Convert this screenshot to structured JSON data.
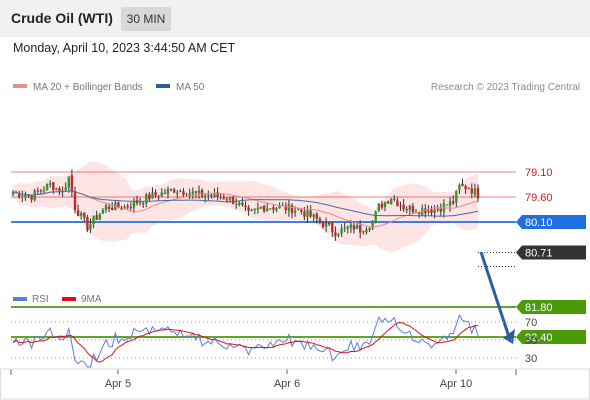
{
  "header": {
    "title": "Crude Oil (WTI)",
    "timeframe": "30 MIN",
    "datetime": "Monday, April 10, 2023 3:44:50 AM CET"
  },
  "legend": {
    "items": [
      {
        "label": "MA 20 + Bollinger Bands",
        "color": "#f08a8a"
      },
      {
        "label": "MA 50",
        "color": "#2c5d9e"
      }
    ],
    "credit": "Research © 2023 Trading Central"
  },
  "chart_data": [
    {
      "type": "candlestick",
      "x_tick_labels": [
        "Apr 5",
        "Apr 6",
        "Apr 10"
      ],
      "ylim": [
        78.9,
        82.6
      ],
      "current_price": {
        "value": 80.71,
        "label": "80.71",
        "color": "#333333"
      },
      "levels": [
        {
          "value": 82.4,
          "label": "82.40",
          "color": "#4a9a0a",
          "boxed": true
        },
        {
          "value": 81.8,
          "label": "81.80",
          "color": "#4a9a0a",
          "boxed": true
        },
        {
          "value": 80.1,
          "label": "80.10",
          "color": "#1f6fe0",
          "boxed": true
        },
        {
          "value": 79.6,
          "label": "79.60",
          "color": "#d42020",
          "boxed": false
        },
        {
          "value": 79.1,
          "label": "79.10",
          "color": "#d42020",
          "boxed": false
        }
      ],
      "projection": {
        "from": 80.7,
        "to": 82.3,
        "color": "#2c5d9e"
      },
      "candle_colors": {
        "up": "#2a9a2a",
        "down": "#c0282a"
      },
      "ma20_color": "#f08a8a",
      "band_color": "#fde0e0",
      "ma50_color": "#4a6a9e"
    },
    {
      "type": "line",
      "legend": [
        {
          "label": "RSI",
          "color": "#5b7fd8"
        },
        {
          "label": "9MA",
          "color": "#e01010"
        }
      ],
      "y_tick_labels": [
        "70",
        "50",
        "30"
      ],
      "ylim": [
        15,
        85
      ]
    }
  ]
}
